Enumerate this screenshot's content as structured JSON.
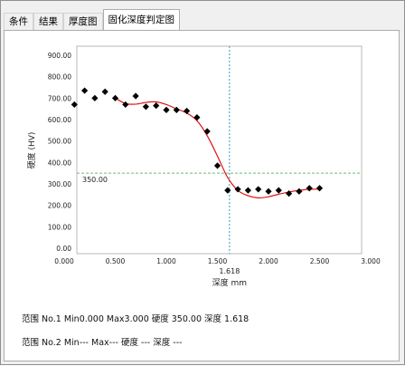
{
  "tabs": [
    {
      "label": "条件"
    },
    {
      "label": "结果"
    },
    {
      "label": "厚度图"
    },
    {
      "label": "固化深度判定图"
    }
  ],
  "active_tab": 3,
  "chart_data": {
    "type": "scatter",
    "title": "",
    "xlabel": "深度 mm",
    "ylabel": "硬度 (HV)",
    "xlim": [
      0.0,
      3.0
    ],
    "ylim": [
      0.0,
      900.0
    ],
    "x_ticks": [
      "0.000",
      "0.500",
      "1.000",
      "1.500",
      "2.000",
      "2.500",
      "3.000"
    ],
    "y_ticks": [
      "0.00",
      "100.00",
      "200.00",
      "300.00",
      "400.00",
      "500.00",
      "600.00",
      "700.00",
      "800.00",
      "900.00"
    ],
    "points": {
      "x": [
        0.1,
        0.2,
        0.3,
        0.4,
        0.5,
        0.6,
        0.7,
        0.8,
        0.9,
        1.0,
        1.1,
        1.2,
        1.3,
        1.4,
        1.5,
        1.6,
        1.7,
        1.8,
        1.9,
        2.0,
        2.1,
        2.2,
        2.3,
        2.4,
        2.5
      ],
      "y": [
        670,
        735,
        700,
        730,
        700,
        670,
        710,
        660,
        665,
        645,
        645,
        640,
        610,
        545,
        385,
        270,
        275,
        270,
        275,
        265,
        270,
        255,
        265,
        280,
        280
      ]
    },
    "fit_curve": {
      "x": [
        0.5,
        0.6,
        0.7,
        0.8,
        0.9,
        1.0,
        1.1,
        1.2,
        1.3,
        1.4,
        1.5,
        1.6,
        1.7,
        1.8,
        1.9,
        2.0,
        2.1,
        2.2,
        2.3,
        2.4,
        2.5
      ],
      "y": [
        700,
        675,
        672,
        680,
        683,
        670,
        650,
        630,
        595,
        525,
        430,
        330,
        270,
        245,
        235,
        240,
        252,
        262,
        270,
        275,
        275
      ]
    },
    "threshold_hardness": 350.0,
    "threshold_label": "350.00",
    "judged_depth": 1.618,
    "judged_depth_label": "1.618",
    "marker_color": "#000000",
    "curve_color": "#e00000",
    "guide_color": "#6cbf6c",
    "depth_line_color": "#3a9ab8",
    "grid": false
  },
  "ranges": [
    {
      "label": "范围",
      "no": "No.1",
      "min": "Min0.000",
      "max": "Max3.000",
      "hardness_label": "硬度",
      "hardness": "350.00",
      "depth_label": "深度",
      "depth": "1.618"
    },
    {
      "label": "范围",
      "no": "No.2",
      "min": "Min---",
      "max": "Max---",
      "hardness_label": "硬度",
      "hardness": "---",
      "depth_label": "深度",
      "depth": "---"
    }
  ]
}
